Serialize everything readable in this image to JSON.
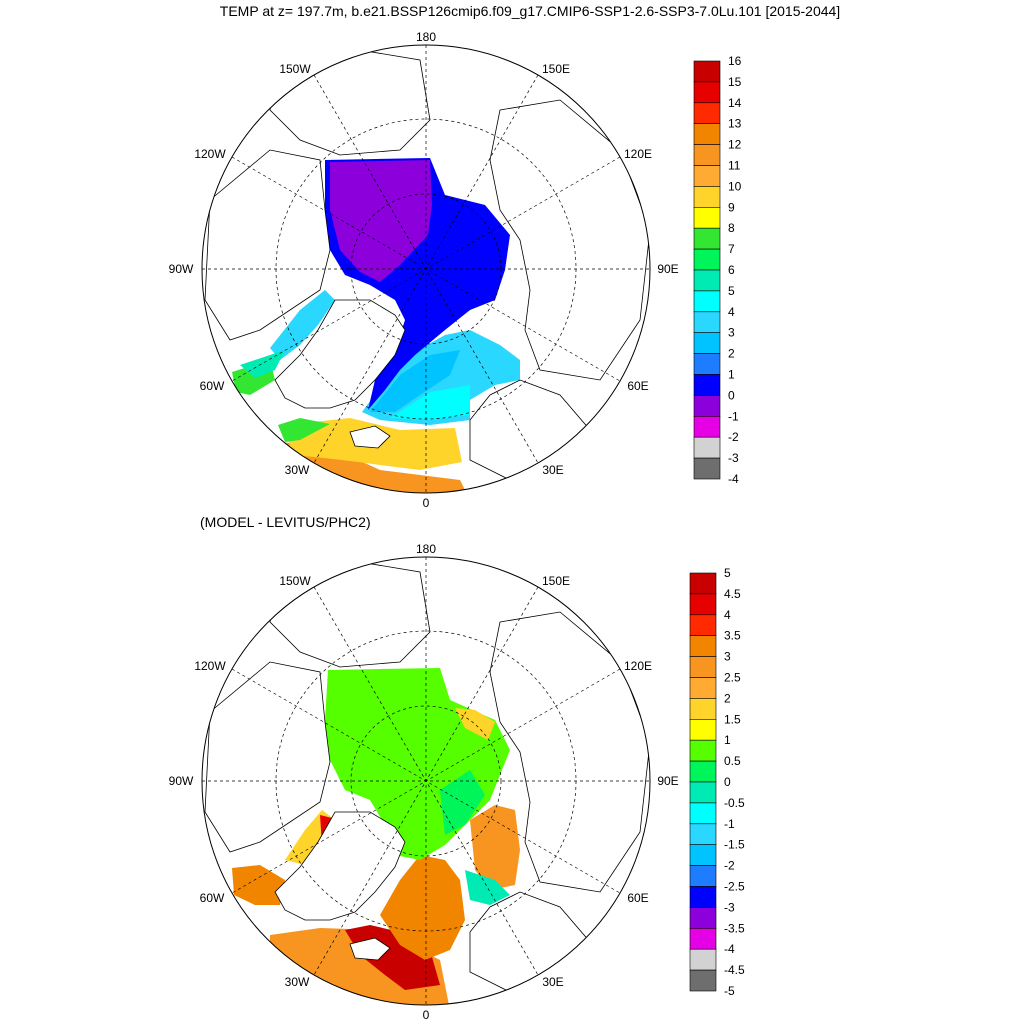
{
  "title": "TEMP at z= 197.7m, b.e21.BSSP126cmip6.f09_g17.CMIP6-SSP1-2.6-SSP3-7.0Lu.101 [2015-2044]",
  "subtitle": "(MODEL - LEVITUS/PHC2)",
  "meridian_labels": [
    "180",
    "150E",
    "120E",
    "90E",
    "60E",
    "30E",
    "0",
    "30W",
    "60W",
    "90W",
    "120W",
    "150W"
  ],
  "top_map": {
    "colorbar": {
      "labels": [
        "16",
        "15",
        "14",
        "13",
        "12",
        "11",
        "10",
        "9",
        "8",
        "7",
        "6",
        "5",
        "4",
        "3",
        "2",
        "1",
        "0",
        "-1",
        "-2",
        "-3",
        "-4"
      ],
      "colors": [
        "#c80000",
        "#e60000",
        "#ff2a00",
        "#f28500",
        "#f79520",
        "#ffaa33",
        "#ffd42a",
        "#ffff00",
        "#32e632",
        "#00f55a",
        "#00ebb4",
        "#00ffff",
        "#29d7ff",
        "#00c3ff",
        "#1e7dff",
        "#0000ff",
        "#8c00dc",
        "#e600e6",
        "#d2d2d2",
        "#6e6e6e"
      ]
    }
  },
  "bottom_map": {
    "colorbar": {
      "labels": [
        "5",
        "4.5",
        "4",
        "3.5",
        "3",
        "2.5",
        "2",
        "1.5",
        "1",
        "0.5",
        "0",
        "-0.5",
        "-1",
        "-1.5",
        "-2",
        "-2.5",
        "-3",
        "-3.5",
        "-4",
        "-4.5",
        "-5"
      ],
      "colors": [
        "#c80000",
        "#e60000",
        "#ff2a00",
        "#f28500",
        "#f79520",
        "#ffaa33",
        "#ffd42a",
        "#ffff00",
        "#55ff00",
        "#00f55a",
        "#00ebb4",
        "#00ffff",
        "#29d7ff",
        "#00c3ff",
        "#1e7dff",
        "#0000ff",
        "#8c00dc",
        "#e600e6",
        "#d2d2d2",
        "#6e6e6e"
      ]
    }
  }
}
